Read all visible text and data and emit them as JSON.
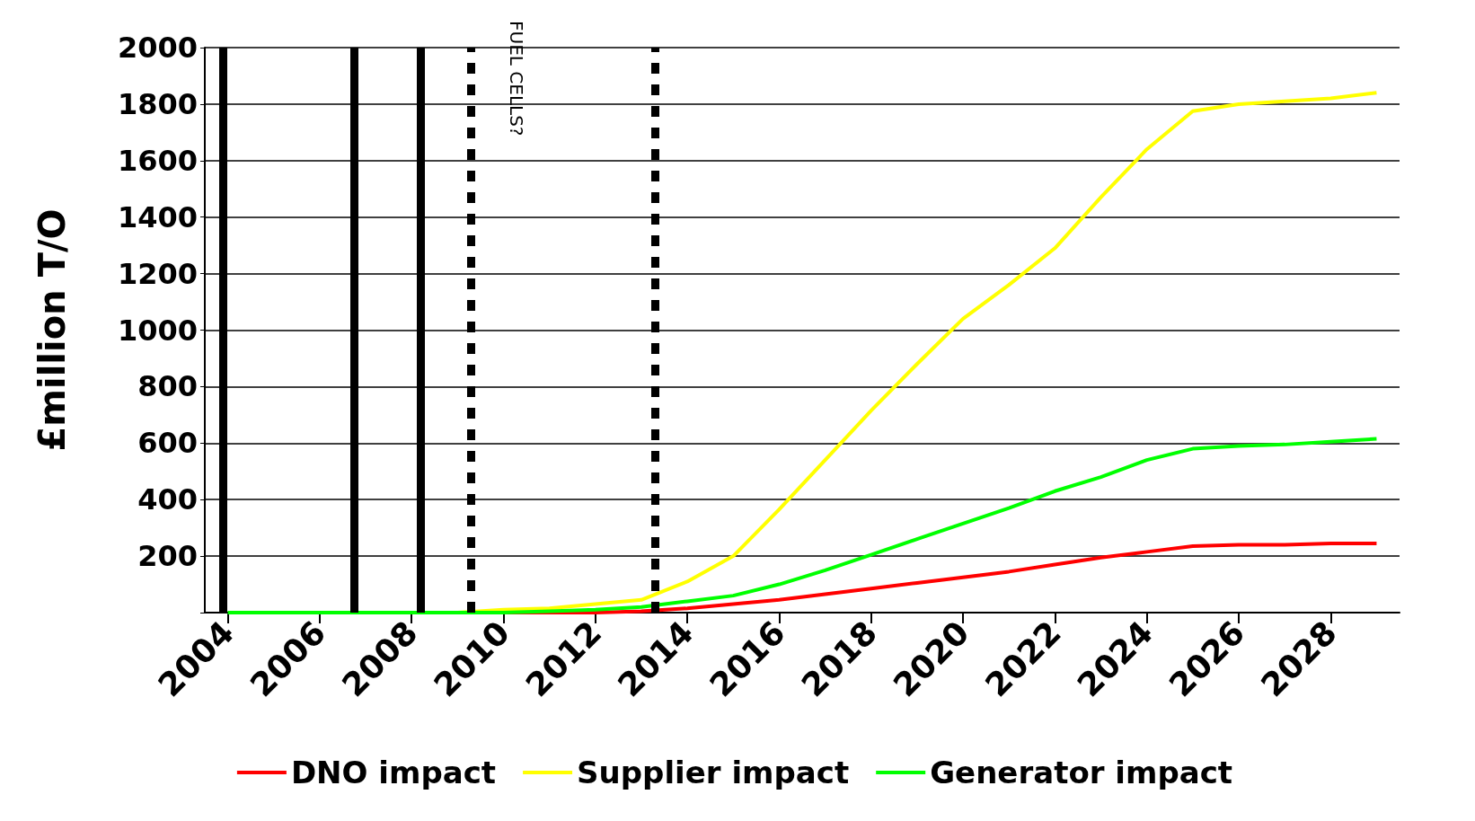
{
  "chart_data": {
    "type": "line",
    "ylabel": "£million T/O",
    "x": [
      2004,
      2005,
      2006,
      2007,
      2008,
      2009,
      2010,
      2011,
      2012,
      2013,
      2014,
      2015,
      2016,
      2017,
      2018,
      2019,
      2020,
      2021,
      2022,
      2023,
      2024,
      2025,
      2026,
      2027,
      2028,
      2029
    ],
    "xlim": [
      2003.5,
      2029.5
    ],
    "xticks": [
      2004,
      2006,
      2008,
      2010,
      2012,
      2014,
      2016,
      2018,
      2020,
      2022,
      2024,
      2026,
      2028
    ],
    "ylim": [
      0,
      2000
    ],
    "yticks": [
      {
        "value": 0,
        "label": null
      },
      200,
      400,
      600,
      800,
      1000,
      1200,
      1400,
      1600,
      1800,
      2000
    ],
    "series": [
      {
        "name": "DNO impact",
        "color": "#ff0000",
        "values": [
          null,
          null,
          null,
          null,
          null,
          null,
          0,
          0,
          0,
          5,
          15,
          30,
          45,
          65,
          85,
          105,
          125,
          145,
          170,
          195,
          215,
          235,
          240,
          240,
          245,
          245
        ]
      },
      {
        "name": "Supplier impact",
        "color": "#ffff00",
        "values": [
          null,
          null,
          null,
          null,
          null,
          0,
          10,
          15,
          30,
          45,
          110,
          200,
          365,
          540,
          715,
          880,
          1040,
          1160,
          1290,
          1470,
          1640,
          1775,
          1800,
          1810,
          1820,
          1840
        ]
      },
      {
        "name": "Generator impact",
        "color": "#00ff00",
        "values": [
          0,
          0,
          0,
          0,
          0,
          0,
          0,
          5,
          10,
          20,
          40,
          60,
          100,
          150,
          205,
          260,
          315,
          370,
          430,
          480,
          540,
          580,
          590,
          595,
          605,
          615
        ]
      }
    ],
    "ref_lines": [
      {
        "axis": "x",
        "value": 2003.9,
        "color": "#000000",
        "line_style": "solid"
      },
      {
        "axis": "x",
        "value": 2006.75,
        "color": "#000000",
        "line_style": "solid"
      },
      {
        "axis": "x",
        "value": 2008.2,
        "color": "#000000",
        "line_style": "solid"
      },
      {
        "axis": "x",
        "value": 2009.3,
        "label": "FUEL CELLS?",
        "color": "#000000",
        "line_style": "dashed"
      },
      {
        "axis": "x",
        "value": 2013.3,
        "color": "#000000",
        "line_style": "dashed"
      }
    ],
    "grid": "y",
    "legend": "bottom",
    "marker": "none",
    "line_style": "solid"
  }
}
